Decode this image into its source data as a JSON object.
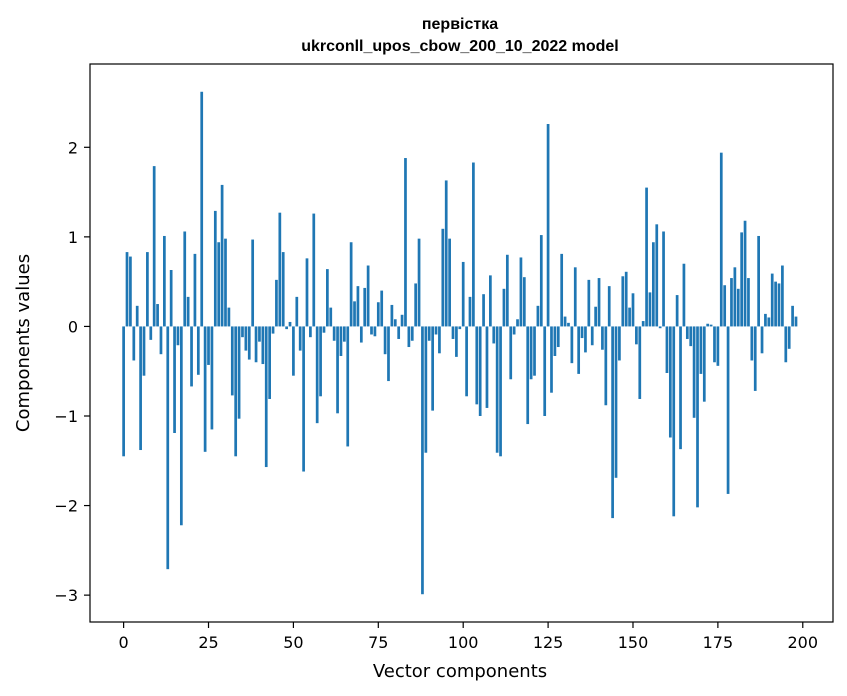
{
  "chart_data": {
    "type": "bar",
    "title": [
      "первістка",
      "ukrconll_upos_cbow_200_10_2022 model"
    ],
    "xlabel": "Vector components",
    "ylabel": "Components values",
    "xlim": [
      -9.9,
      208.9
    ],
    "ylim": [
      -3.3,
      2.93
    ],
    "xticks": [
      0,
      25,
      50,
      75,
      100,
      125,
      150,
      175,
      200
    ],
    "yticks": [
      -3,
      -2,
      -1,
      0,
      1,
      2
    ],
    "xtick_labels": [
      "0",
      "25",
      "50",
      "75",
      "100",
      "125",
      "150",
      "175",
      "200"
    ],
    "ytick_labels": [
      "−3",
      "−2",
      "−1",
      "0",
      "1",
      "2"
    ],
    "grid": false,
    "bar_color": "#1f77b4",
    "values": [
      -1.45,
      0.83,
      0.78,
      -0.38,
      0.23,
      -1.38,
      -0.55,
      0.83,
      -0.15,
      1.79,
      0.25,
      -0.31,
      1.01,
      -2.71,
      0.63,
      -1.19,
      -0.21,
      -2.22,
      1.06,
      0.33,
      -0.67,
      0.81,
      -0.54,
      2.62,
      -1.4,
      -0.43,
      -1.15,
      1.29,
      0.94,
      1.58,
      0.98,
      0.21,
      -0.77,
      -1.45,
      -1.03,
      -0.12,
      -0.27,
      -0.37,
      0.97,
      -0.4,
      -0.17,
      -0.42,
      -1.57,
      -0.81,
      -0.08,
      0.52,
      1.27,
      0.83,
      -0.03,
      0.05,
      -0.55,
      0.33,
      -0.27,
      -1.62,
      0.76,
      -0.12,
      1.26,
      -1.08,
      -0.78,
      -0.07,
      0.64,
      0.21,
      -0.16,
      -0.97,
      -0.33,
      -0.17,
      -1.34,
      0.94,
      0.28,
      0.45,
      -0.18,
      0.43,
      0.68,
      -0.09,
      -0.11,
      0.27,
      0.4,
      -0.31,
      -0.61,
      0.24,
      0.08,
      -0.14,
      0.13,
      1.88,
      -0.23,
      -0.16,
      0.48,
      0.98,
      -2.99,
      -1.41,
      -0.16,
      -0.94,
      -0.09,
      -0.3,
      1.09,
      1.63,
      0.98,
      -0.14,
      -0.34,
      -0.03,
      0.72,
      -0.78,
      0.33,
      1.83,
      -0.87,
      -1.0,
      0.36,
      -0.91,
      0.57,
      -0.19,
      -1.41,
      -1.45,
      0.42,
      0.8,
      -0.59,
      -0.09,
      0.08,
      0.77,
      0.55,
      -1.09,
      -0.59,
      -0.55,
      0.23,
      1.02,
      -1.0,
      2.26,
      -0.74,
      -0.33,
      -0.23,
      0.81,
      0.11,
      0.04,
      -0.41,
      0.66,
      -0.53,
      -0.13,
      -0.29,
      0.52,
      -0.21,
      0.22,
      0.54,
      -0.26,
      -0.88,
      0.45,
      -2.14,
      -1.69,
      -0.38,
      0.56,
      0.61,
      0.21,
      0.37,
      -0.2,
      -0.81,
      0.06,
      1.55,
      0.38,
      0.94,
      1.14,
      -0.02,
      1.06,
      -0.52,
      -1.24,
      -2.12,
      0.35,
      -1.37,
      0.7,
      -0.14,
      -0.22,
      -1.02,
      -2.02,
      -0.53,
      -0.84,
      0.03,
      0.02,
      -0.4,
      -0.44,
      1.94,
      0.46,
      -1.87,
      0.54,
      0.66,
      0.42,
      1.05,
      1.18,
      0.54,
      -0.38,
      -0.72,
      1.01,
      -0.3,
      0.14,
      0.1,
      0.59,
      0.5,
      0.48,
      0.68,
      -0.4,
      -0.25,
      0.23,
      0.11
    ]
  }
}
